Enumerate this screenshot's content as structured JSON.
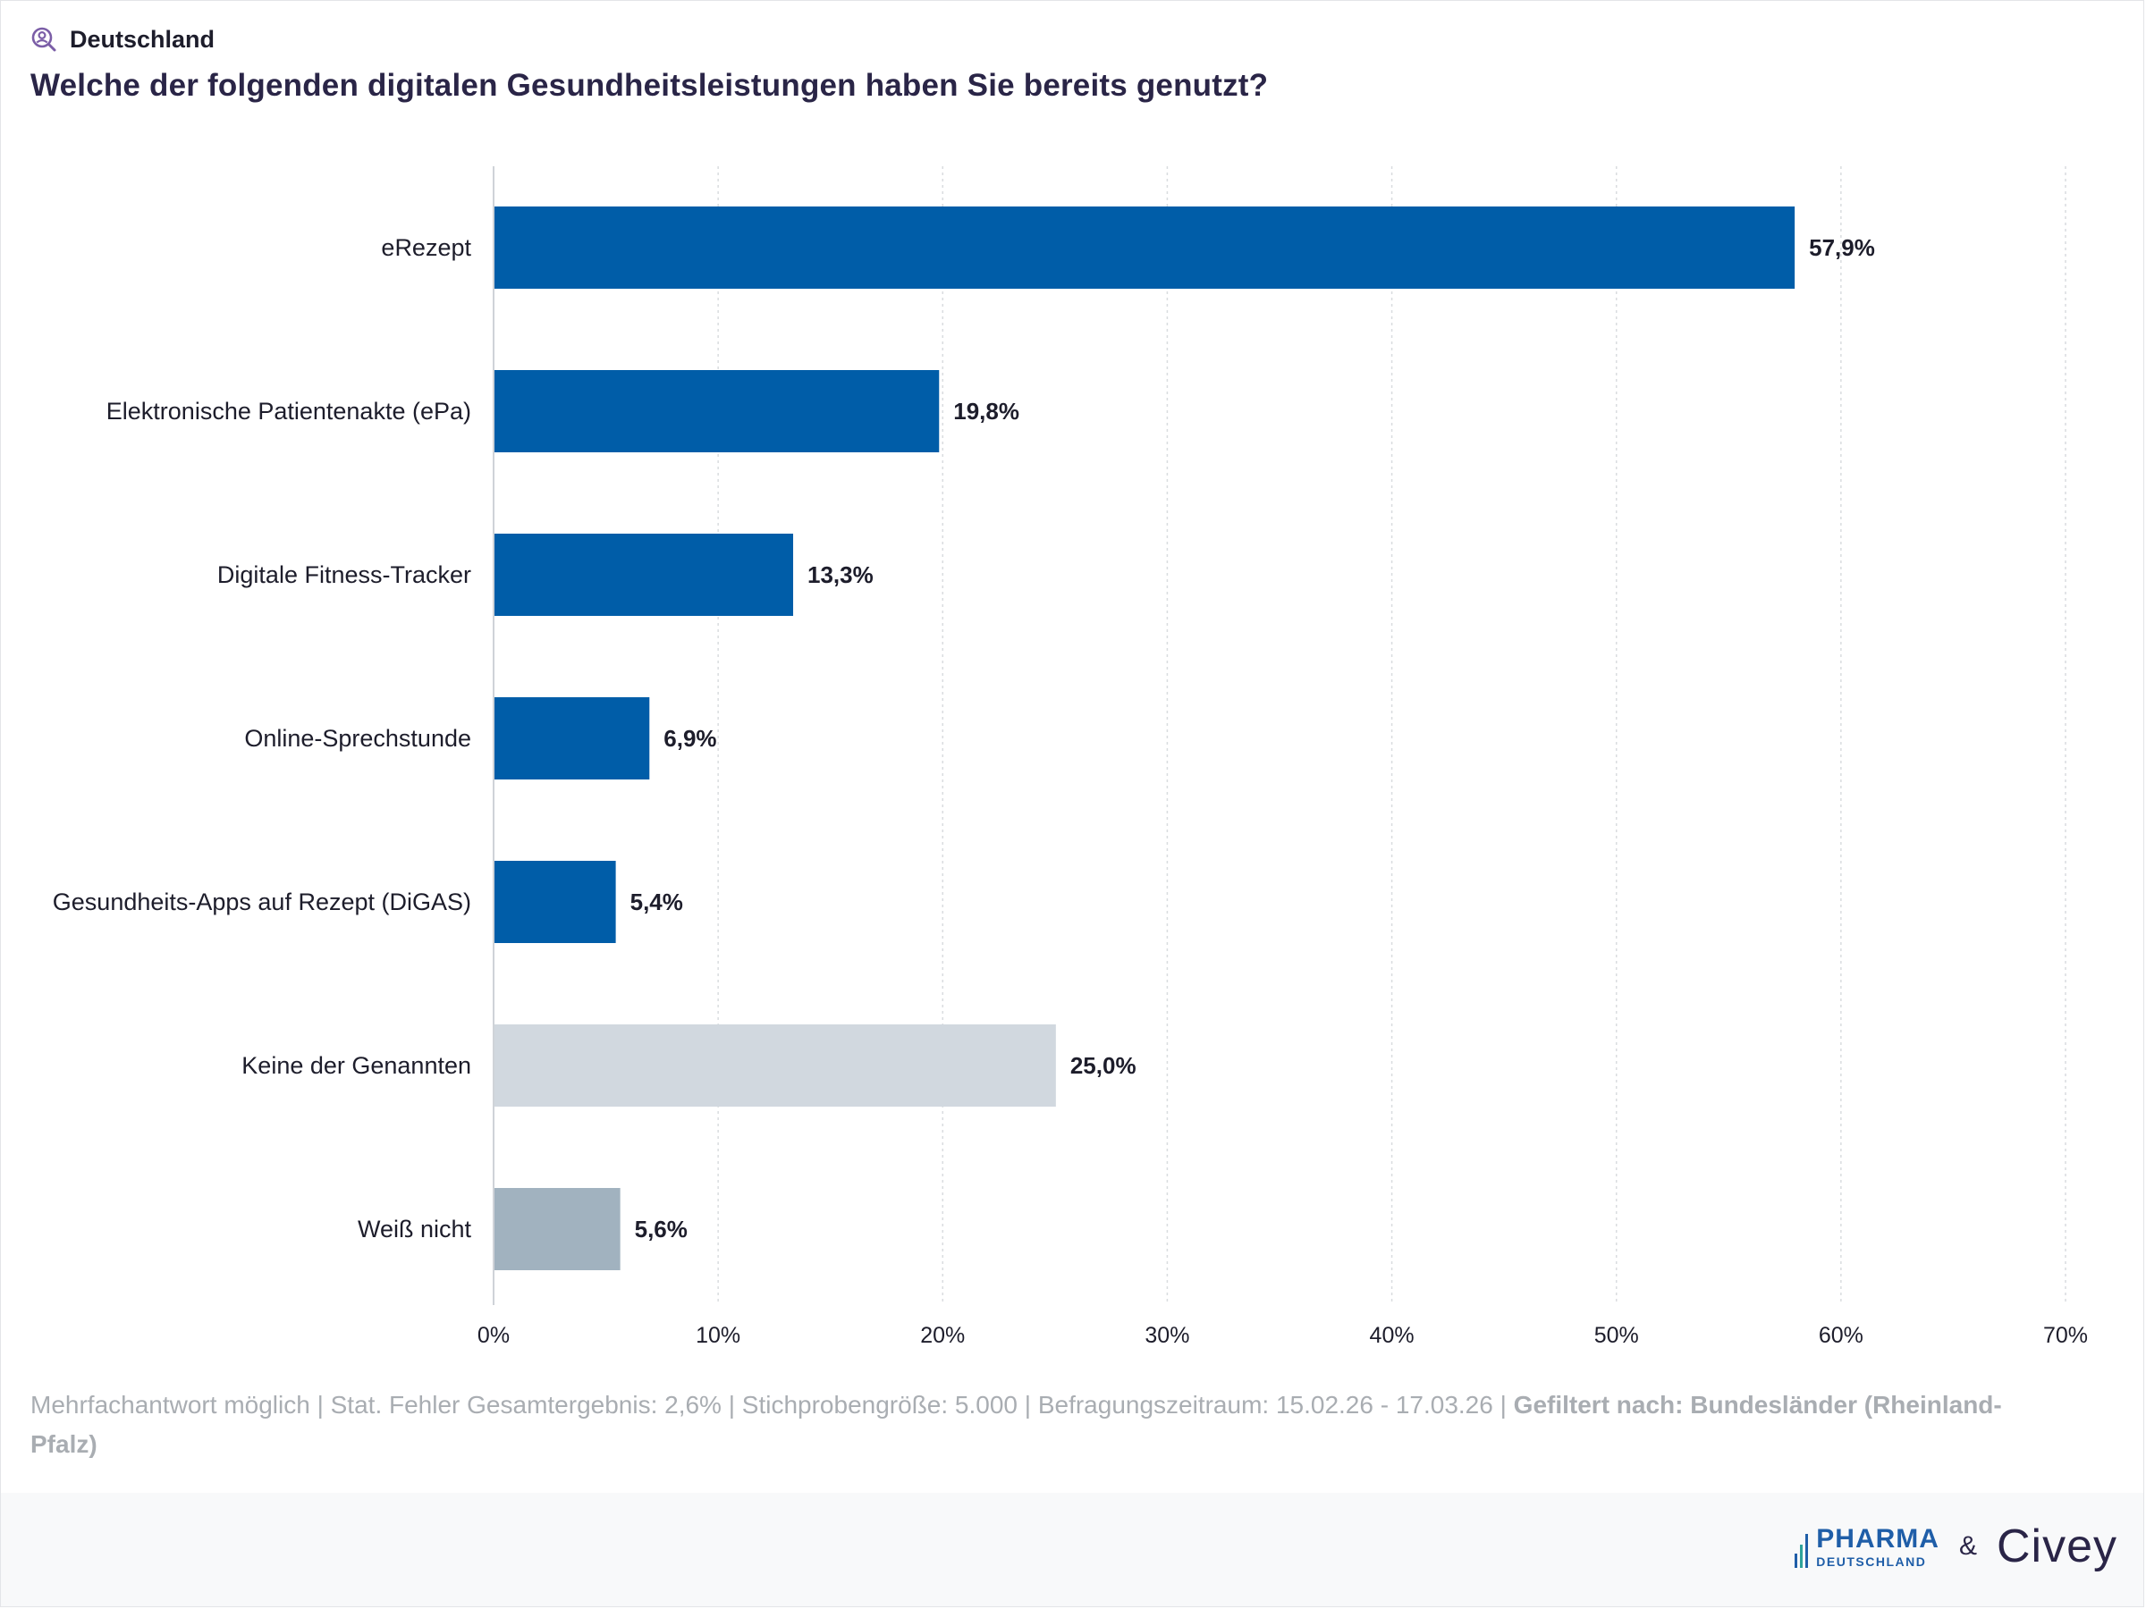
{
  "header": {
    "region": "Deutschland",
    "region_icon": "search-person-icon",
    "title": "Welche der folgenden digitalen Gesundheitsleistungen haben Sie bereits genutzt?"
  },
  "chart_data": {
    "type": "bar",
    "orientation": "horizontal",
    "categories": [
      "eRezept",
      "Elektronische Patientenakte (ePa)",
      "Digitale Fitness-Tracker",
      "Online-Sprechstunde",
      "Gesundheits-Apps auf Rezept (DiGAS)",
      "Keine der Genannten",
      "Weiß nicht"
    ],
    "values": [
      57.9,
      19.8,
      13.3,
      6.9,
      5.4,
      25.0,
      5.6
    ],
    "value_labels": [
      "57,9%",
      "19,8%",
      "13,3%",
      "6,9%",
      "5,4%",
      "25,0%",
      "5,6%"
    ],
    "colors": [
      "#005da8",
      "#005da8",
      "#005da8",
      "#005da8",
      "#005da8",
      "#d1d8df",
      "#a1b2bf"
    ],
    "xlim": [
      0,
      70
    ],
    "xticks": [
      0,
      10,
      20,
      30,
      40,
      50,
      60,
      70
    ],
    "xtick_labels": [
      "0%",
      "10%",
      "20%",
      "30%",
      "40%",
      "50%",
      "60%",
      "70%"
    ],
    "grid": true,
    "legend": "none"
  },
  "footnote": {
    "text": "Mehrfachantwort möglich | Stat. Fehler Gesamtergebnis: 2,6% | Stichprobengröße: 5.000 | Befragungszeitraum: 15.02.26 - 17.03.26 |",
    "filter": "Gefiltert nach: Bundesländer (Rheinland-Pfalz)"
  },
  "logos": {
    "pharma_main": "PHARMA",
    "pharma_sub": "DEUTSCHLAND",
    "amp": "&",
    "civey": "Civey"
  }
}
